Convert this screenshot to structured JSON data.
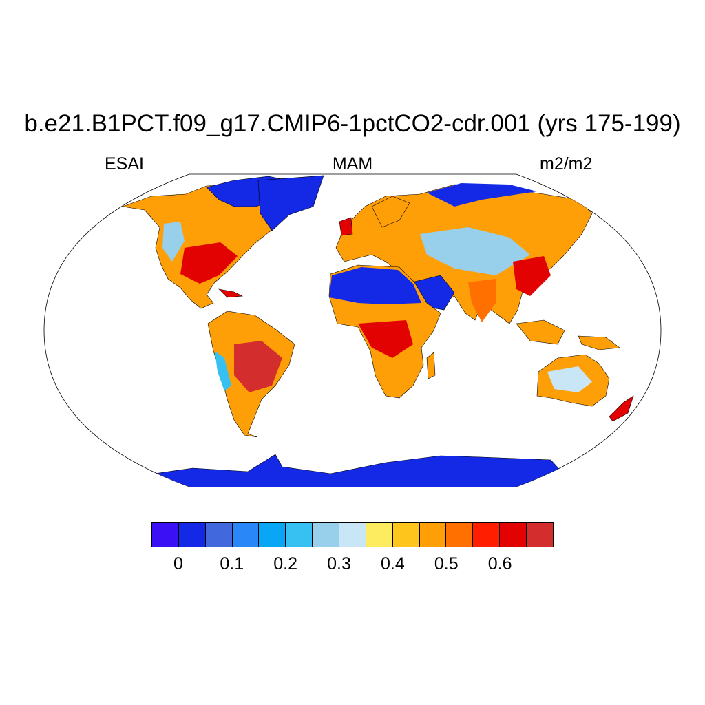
{
  "title": "b.e21.B1PCT.f09_g17.CMIP6-1pctCO2-cdr.001 (yrs 175-199)",
  "subtitle_left": "ESAI",
  "subtitle_center": "MAM",
  "subtitle_right": "m2/m2",
  "colorbar": {
    "colors": [
      "#3b10f5",
      "#1429e6",
      "#4268de",
      "#2a87f8",
      "#0aa6f6",
      "#37c1f3",
      "#98cfea",
      "#c9e6f6",
      "#fdec60",
      "#fec61d",
      "#ff9f07",
      "#ff7000",
      "#ff1f00",
      "#e30202",
      "#d42d2d"
    ],
    "tick_labels": [
      "0",
      "0.1",
      "0.2",
      "0.3",
      "0.4",
      "0.5",
      "0.6"
    ]
  },
  "colors": {
    "ocean": "#ffffff",
    "ice": "#1429e6",
    "desert": "#1429e6",
    "high": "#e30202",
    "mid": "#ff9f07",
    "low": "#98cfea"
  }
}
